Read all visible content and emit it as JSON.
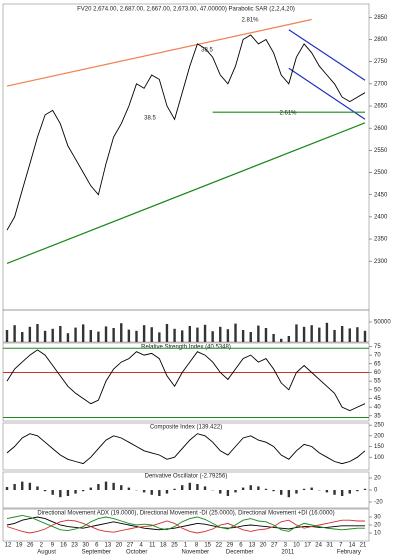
{
  "chart_data": [
    {
      "type": "line",
      "title": "FV20 2,674.00, 2,687.00, 2,667.00, 2,673.00, 47.00000)  Parabolic SAR (2,2,4,20)",
      "color": "#000000",
      "values": [
        2370,
        2400,
        2460,
        2520,
        2580,
        2630,
        2640,
        2610,
        2560,
        2530,
        2500,
        2470,
        2450,
        2520,
        2580,
        2610,
        2650,
        2700,
        2690,
        2720,
        2710,
        2650,
        2620,
        2680,
        2740,
        2790,
        2780,
        2760,
        2720,
        2700,
        2740,
        2800,
        2810,
        2790,
        2800,
        2770,
        2720,
        2700,
        2760,
        2790,
        2770,
        2740,
        2720,
        2700,
        2670,
        2660,
        2670,
        2680
      ],
      "ylim": [
        2190,
        2880
      ],
      "yticks": [
        2850,
        2800,
        2750,
        2700,
        2650,
        2600,
        2550,
        2500,
        2450,
        2400,
        2350,
        2300
      ],
      "trendlines": [
        {
          "color": "#f08050",
          "x": [
            0,
            40
          ],
          "values": [
            2695,
            2845
          ]
        },
        {
          "color": "#1a8a1a",
          "x": [
            0,
            47
          ],
          "values": [
            2295,
            2612
          ]
        },
        {
          "color": "#2030c0",
          "x": [
            37,
            47
          ],
          "values": [
            2822,
            2708
          ]
        },
        {
          "color": "#2030c0",
          "x": [
            37,
            47
          ],
          "values": [
            2735,
            2620
          ]
        },
        {
          "color": "#1a8a1a",
          "x": [
            27,
            47
          ],
          "values": [
            2636,
            2636
          ]
        }
      ],
      "annotations": [
        "2.81%",
        "2.61%",
        "38.5",
        "38.5"
      ]
    },
    {
      "type": "bar",
      "color": "#333333",
      "values": [
        30000,
        42000,
        25000,
        38000,
        45000,
        28000,
        33000,
        40000,
        22000,
        36000,
        44000,
        30000,
        26000,
        39000,
        35000,
        47000,
        31000,
        28000,
        42000,
        37000,
        24000,
        45000,
        33000,
        29000,
        40000,
        36000,
        43000,
        27000,
        38000,
        32000,
        46000,
        30000,
        25000,
        41000,
        35000,
        20000,
        8000,
        15000,
        44000,
        38000,
        42000,
        36000,
        48000,
        30000,
        40000,
        34000,
        37000,
        28000
      ],
      "ylim": [
        0,
        80000
      ],
      "yticks": [
        50000
      ]
    },
    {
      "type": "line",
      "title": "Relative Strength Index (40.5348)",
      "color": "#000000",
      "values": [
        55,
        62,
        66,
        70,
        73,
        70,
        64,
        58,
        52,
        48,
        45,
        42,
        44,
        55,
        62,
        66,
        68,
        72,
        70,
        71,
        68,
        58,
        52,
        60,
        66,
        72,
        70,
        66,
        60,
        56,
        62,
        68,
        70,
        66,
        68,
        62,
        54,
        50,
        60,
        64,
        60,
        56,
        52,
        48,
        40,
        38,
        40,
        42
      ],
      "ylim": [
        32,
        77
      ],
      "yticks": [
        75,
        70,
        65,
        60,
        55,
        50,
        45,
        40,
        35
      ],
      "levels": [
        {
          "value": 74,
          "color": "#1a8a1a"
        },
        {
          "value": 60,
          "color": "#d03030"
        },
        {
          "value": 34,
          "color": "#1a8a1a"
        }
      ]
    },
    {
      "type": "line",
      "title": "Composite Index (139.422)",
      "color": "#000000",
      "values": [
        120,
        150,
        190,
        210,
        200,
        170,
        140,
        110,
        90,
        80,
        70,
        100,
        140,
        180,
        200,
        190,
        170,
        150,
        130,
        120,
        110,
        90,
        100,
        140,
        180,
        210,
        200,
        170,
        130,
        110,
        150,
        190,
        200,
        180,
        170,
        150,
        110,
        90,
        130,
        160,
        150,
        120,
        100,
        80,
        70,
        80,
        100,
        130
      ],
      "ylim": [
        40,
        260
      ],
      "yticks": [
        250,
        200,
        150,
        100
      ]
    },
    {
      "type": "bar",
      "title": "Derivative Oscillator (-2.79256)",
      "color": "#333333",
      "values": [
        5,
        10,
        14,
        12,
        6,
        -2,
        -8,
        -12,
        -10,
        -6,
        -2,
        4,
        10,
        14,
        12,
        8,
        4,
        0,
        -4,
        -8,
        -10,
        -6,
        2,
        8,
        12,
        10,
        6,
        0,
        -6,
        -10,
        -4,
        4,
        8,
        6,
        2,
        -2,
        -8,
        -12,
        -6,
        2,
        4,
        0,
        -4,
        -8,
        -10,
        -6,
        -2,
        2
      ],
      "ylim": [
        -30,
        30
      ],
      "yticks": [
        20,
        0,
        -20
      ]
    },
    {
      "type": "multiline",
      "title": "Directional Movement ADX (19.0000), Directional Movement -DI (25.0000), Directional Movement +DI (16.0000)",
      "series": [
        {
          "color": "#000000",
          "values": [
            20,
            22,
            26,
            28,
            30,
            28,
            24,
            20,
            18,
            17,
            16,
            18,
            20,
            22,
            24,
            22,
            20,
            18,
            16,
            15,
            14,
            15,
            16,
            18,
            20,
            22,
            21,
            19,
            17,
            16,
            17,
            19,
            20,
            19,
            18,
            17,
            16,
            15,
            17,
            18,
            18,
            17,
            17,
            18,
            19,
            19,
            19,
            19
          ]
        },
        {
          "color": "#d03030",
          "values": [
            18,
            15,
            12,
            10,
            12,
            15,
            20,
            24,
            26,
            25,
            22,
            18,
            14,
            12,
            11,
            13,
            15,
            17,
            18,
            19,
            22,
            25,
            22,
            16,
            12,
            10,
            12,
            15,
            20,
            22,
            18,
            14,
            12,
            14,
            15,
            18,
            24,
            26,
            20,
            16,
            18,
            20,
            22,
            24,
            26,
            26,
            25,
            25
          ]
        },
        {
          "color": "#1a8a1a",
          "values": [
            28,
            30,
            32,
            30,
            26,
            22,
            18,
            14,
            13,
            15,
            18,
            24,
            28,
            30,
            28,
            25,
            22,
            20,
            21,
            20,
            16,
            14,
            18,
            24,
            28,
            30,
            27,
            22,
            17,
            15,
            20,
            26,
            28,
            25,
            24,
            20,
            14,
            12,
            18,
            22,
            20,
            18,
            16,
            15,
            14,
            15,
            16,
            16
          ]
        }
      ],
      "ylim": [
        0,
        40
      ],
      "yticks": [
        30,
        20,
        10
      ]
    }
  ],
  "x_axis": {
    "days": [
      "12",
      "19",
      "26",
      "2",
      "9",
      "16",
      "23",
      "30",
      "6",
      "13",
      "20",
      "27",
      "4",
      "11",
      "18",
      "25",
      "1",
      "8",
      "15",
      "22",
      "29",
      "6",
      "13",
      "20",
      "27",
      "3",
      "10",
      "17",
      "24",
      "31",
      "7",
      "14",
      "21"
    ],
    "months": [
      "August",
      "September",
      "October",
      "November",
      "December",
      "2011",
      "February"
    ]
  }
}
